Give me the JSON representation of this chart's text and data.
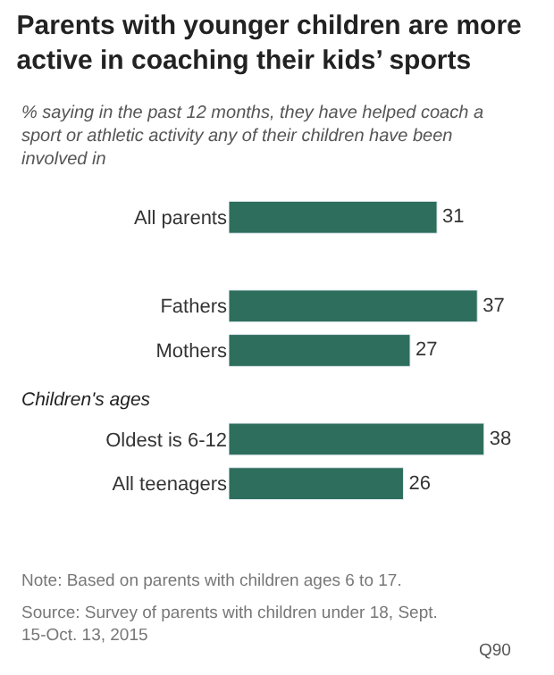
{
  "chart_data": {
    "type": "bar",
    "orientation": "horizontal",
    "title": "Parents with younger children are more active in coaching their kids’ sports",
    "subtitle": "% saying in the past 12 months, they have helped coach a sport or athletic activity any of their children have been involved in",
    "categories": [
      "All parents",
      null,
      "Fathers",
      "Mothers",
      null,
      "Oldest is 6-12",
      "All teenagers"
    ],
    "values": [
      31,
      null,
      37,
      27,
      null,
      38,
      26
    ],
    "color": "#2e6e5c",
    "data_labels": true,
    "legend": false,
    "annotations": [
      "Children's ages",
      "Note: Based on parents with children ages 6 to 17.",
      "Source: Survey of parents with children under 18, Sept. 15-Oct. 13, 2015",
      "Q90"
    ]
  }
}
